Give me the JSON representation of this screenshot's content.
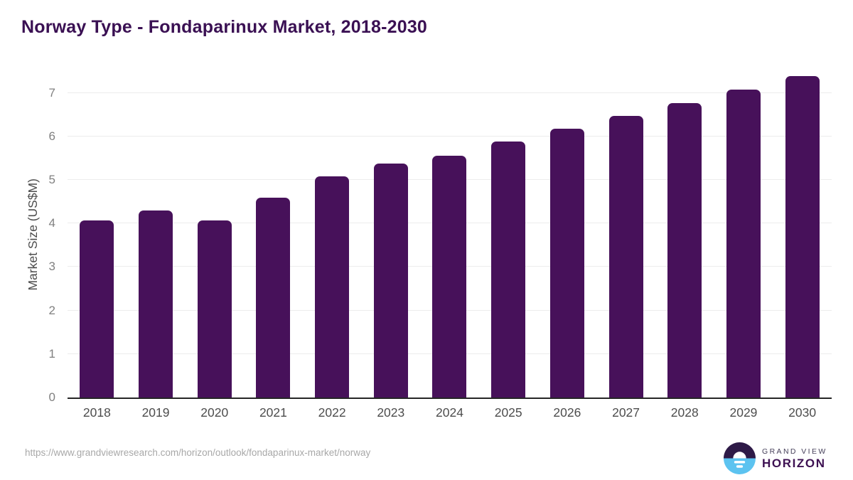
{
  "title": "Norway Type - Fondaparinux Market, 2018-2030",
  "chart_data": {
    "type": "bar",
    "title": "Norway Type - Fondaparinux Market, 2018-2030",
    "categories": [
      "2018",
      "2019",
      "2020",
      "2021",
      "2022",
      "2023",
      "2024",
      "2025",
      "2026",
      "2027",
      "2028",
      "2029",
      "2030"
    ],
    "values": [
      4.07,
      4.29,
      4.07,
      4.59,
      5.09,
      5.38,
      5.56,
      5.88,
      6.17,
      6.47,
      6.77,
      7.08,
      7.39
    ],
    "xlabel": "",
    "ylabel": "Market Size (US$M)",
    "ylim": [
      0,
      7.5
    ],
    "yticks": [
      0,
      1,
      2,
      3,
      4,
      5,
      6,
      7
    ],
    "grid": true,
    "legend": "none",
    "bar_color": "#47115a"
  },
  "footer": {
    "source_url": "https://www.grandviewresearch.com/horizon/outlook/fondaparinux-market/norway",
    "brand_top": "GRAND VIEW",
    "brand_bottom": "HORIZON"
  },
  "colors": {
    "title": "#3a1053",
    "bar": "#47115a",
    "gridline": "#ececec",
    "axis_line": "#262626",
    "x_label": "#4d4d4d",
    "y_tick": "#808080",
    "url_text": "#a8a8a8",
    "logo_navy": "#2e1a47",
    "logo_blue": "#5cc3f0",
    "brand_purple": "#3d1152"
  }
}
